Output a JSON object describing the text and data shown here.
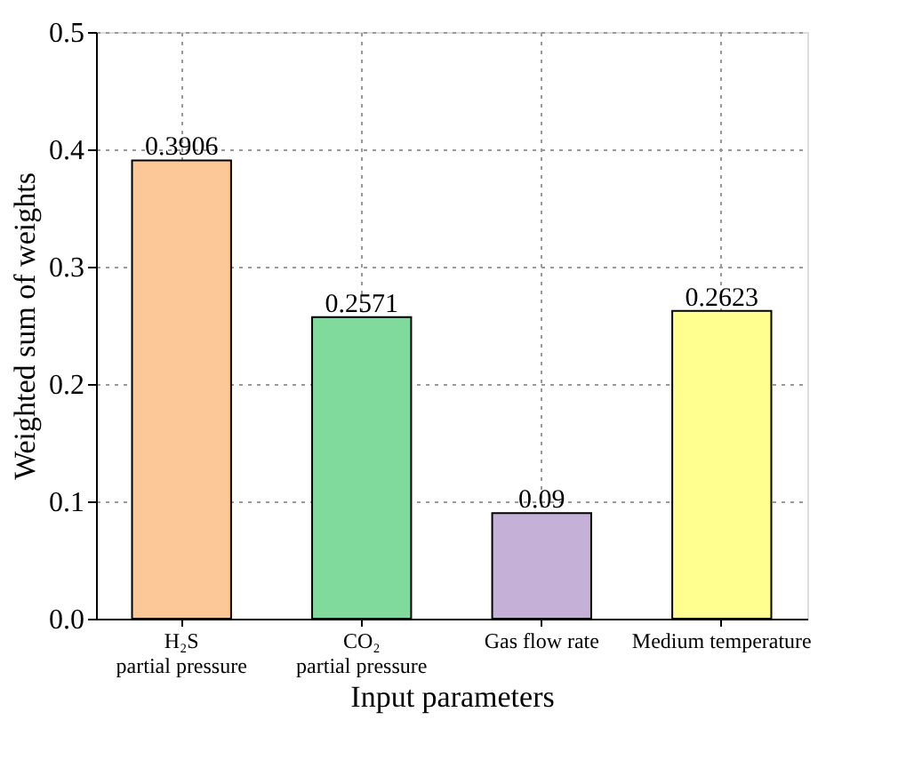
{
  "chart_data": {
    "type": "bar",
    "xlabel": "Input parameters",
    "ylabel": "Weighted sum of weights",
    "categories": [
      "H₂S\npartial pressure",
      "CO₂\npartial pressure",
      "Gas flow rate",
      "Medium temperature"
    ],
    "values": [
      0.3906,
      0.2571,
      0.09,
      0.2623
    ],
    "colors": [
      "#fdc897",
      "#80da9c",
      "#c5b0d8",
      "#ffff90"
    ],
    "ylim": [
      0,
      0.5
    ],
    "yticks": [
      {
        "value": 0,
        "label": "0.0"
      },
      0.1,
      0.2,
      0.3,
      0.4,
      0.5
    ],
    "grid": true,
    "data_labels": true
  }
}
